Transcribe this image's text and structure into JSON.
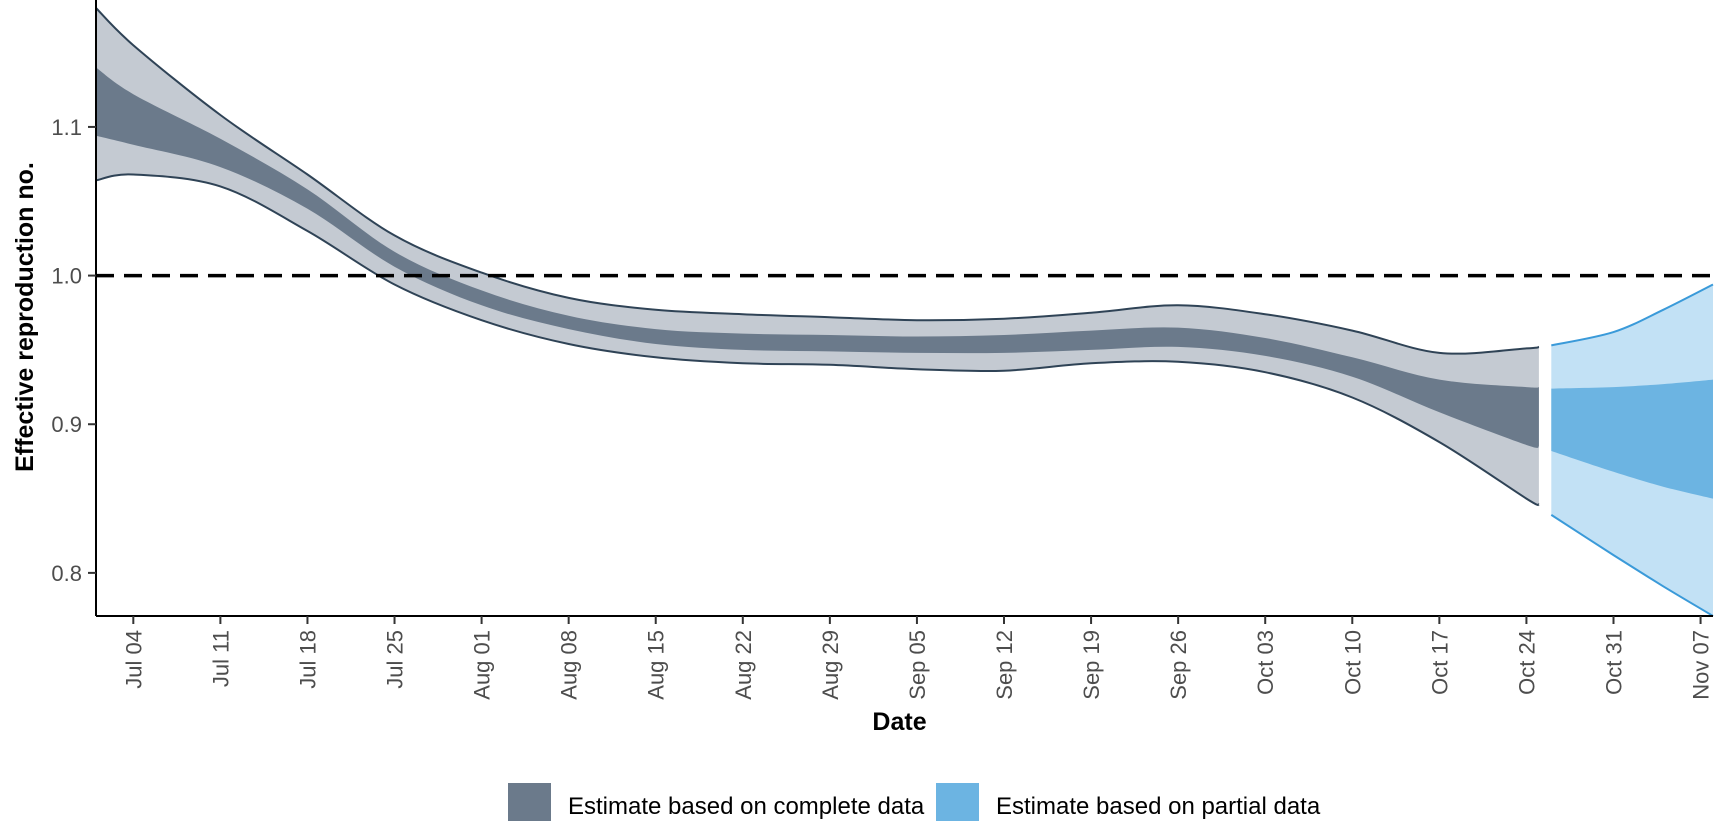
{
  "chart_data": {
    "type": "area",
    "xlabel": "Date",
    "ylabel": "Effective reproduction no.",
    "x_tick_labels": [
      "Jul 04",
      "Jul 11",
      "Jul 18",
      "Jul 25",
      "Aug 01",
      "Aug 08",
      "Aug 15",
      "Aug 22",
      "Aug 29",
      "Sep 05",
      "Sep 12",
      "Sep 19",
      "Sep 26",
      "Oct 03",
      "Oct 10",
      "Oct 17",
      "Oct 24",
      "Oct 31",
      "Nov 07"
    ],
    "x_tick_dates": [
      "2020-07-04",
      "2020-07-11",
      "2020-07-18",
      "2020-07-25",
      "2020-08-01",
      "2020-08-08",
      "2020-08-15",
      "2020-08-22",
      "2020-08-29",
      "2020-09-05",
      "2020-09-12",
      "2020-09-19",
      "2020-09-26",
      "2020-10-03",
      "2020-10-10",
      "2020-10-17",
      "2020-10-24",
      "2020-10-31",
      "2020-11-07"
    ],
    "x_range": [
      "2020-07-01",
      "2020-11-08"
    ],
    "y_ticks": [
      0.8,
      0.9,
      1.0,
      1.1
    ],
    "y_tick_labels": [
      "0.8",
      "0.9",
      "1.0",
      "1.1"
    ],
    "ylim": [
      0.771,
      1.18
    ],
    "reference_line": {
      "y": 1.0,
      "style": "dashed",
      "color": "#000000"
    },
    "grid": false,
    "legend_position": "bottom",
    "series": [
      {
        "name": "Estimate based on complete data",
        "fill_color": "#6b7a8b",
        "outer_color": "#c4cad2",
        "line_color": "#2f4356",
        "points": [
          {
            "x": "2020-07-01",
            "outer_lo": 1.064,
            "inner_lo": 1.094,
            "inner_hi": 1.14,
            "outer_hi": 1.18
          },
          {
            "x": "2020-07-04",
            "outer_lo": 1.068,
            "inner_lo": 1.088,
            "inner_hi": 1.122,
            "outer_hi": 1.155
          },
          {
            "x": "2020-07-11",
            "outer_lo": 1.06,
            "inner_lo": 1.073,
            "inner_hi": 1.092,
            "outer_hi": 1.108
          },
          {
            "x": "2020-07-18",
            "outer_lo": 1.03,
            "inner_lo": 1.045,
            "inner_hi": 1.058,
            "outer_hi": 1.068
          },
          {
            "x": "2020-07-25",
            "outer_lo": 0.994,
            "inner_lo": 1.006,
            "inner_hi": 1.016,
            "outer_hi": 1.027
          },
          {
            "x": "2020-08-01",
            "outer_lo": 0.97,
            "inner_lo": 0.98,
            "inner_hi": 0.99,
            "outer_hi": 1.002
          },
          {
            "x": "2020-08-08",
            "outer_lo": 0.954,
            "inner_lo": 0.964,
            "inner_hi": 0.973,
            "outer_hi": 0.985
          },
          {
            "x": "2020-08-15",
            "outer_lo": 0.945,
            "inner_lo": 0.954,
            "inner_hi": 0.964,
            "outer_hi": 0.977
          },
          {
            "x": "2020-08-22",
            "outer_lo": 0.941,
            "inner_lo": 0.95,
            "inner_hi": 0.961,
            "outer_hi": 0.974
          },
          {
            "x": "2020-08-29",
            "outer_lo": 0.94,
            "inner_lo": 0.949,
            "inner_hi": 0.96,
            "outer_hi": 0.972
          },
          {
            "x": "2020-09-05",
            "outer_lo": 0.937,
            "inner_lo": 0.948,
            "inner_hi": 0.959,
            "outer_hi": 0.97
          },
          {
            "x": "2020-09-12",
            "outer_lo": 0.936,
            "inner_lo": 0.948,
            "inner_hi": 0.96,
            "outer_hi": 0.971
          },
          {
            "x": "2020-09-19",
            "outer_lo": 0.941,
            "inner_lo": 0.95,
            "inner_hi": 0.963,
            "outer_hi": 0.975
          },
          {
            "x": "2020-09-26",
            "outer_lo": 0.942,
            "inner_lo": 0.952,
            "inner_hi": 0.965,
            "outer_hi": 0.98
          },
          {
            "x": "2020-10-03",
            "outer_lo": 0.935,
            "inner_lo": 0.946,
            "inner_hi": 0.958,
            "outer_hi": 0.974
          },
          {
            "x": "2020-10-10",
            "outer_lo": 0.918,
            "inner_lo": 0.932,
            "inner_hi": 0.945,
            "outer_hi": 0.963
          },
          {
            "x": "2020-10-17",
            "outer_lo": 0.888,
            "inner_lo": 0.908,
            "inner_hi": 0.93,
            "outer_hi": 0.948
          },
          {
            "x": "2020-10-24",
            "outer_lo": 0.85,
            "inner_lo": 0.886,
            "inner_hi": 0.925,
            "outer_hi": 0.951
          },
          {
            "x": "2020-10-25",
            "outer_lo": 0.846,
            "inner_lo": 0.885,
            "inner_hi": 0.925,
            "outer_hi": 0.952
          }
        ]
      },
      {
        "name": "Estimate based on partial data",
        "fill_color": "#6cb4e2",
        "outer_color": "#c2e1f5",
        "line_color": "#3a9ad9",
        "points": [
          {
            "x": "2020-10-26",
            "outer_lo": 0.839,
            "inner_lo": 0.882,
            "inner_hi": 0.924,
            "outer_hi": 0.953
          },
          {
            "x": "2020-10-31",
            "outer_lo": 0.812,
            "inner_lo": 0.868,
            "inner_hi": 0.925,
            "outer_hi": 0.962
          },
          {
            "x": "2020-11-04",
            "outer_lo": 0.791,
            "inner_lo": 0.858,
            "inner_hi": 0.927,
            "outer_hi": 0.977
          },
          {
            "x": "2020-11-08",
            "outer_lo": 0.771,
            "inner_lo": 0.85,
            "inner_hi": 0.93,
            "outer_hi": 0.994
          }
        ]
      }
    ]
  }
}
